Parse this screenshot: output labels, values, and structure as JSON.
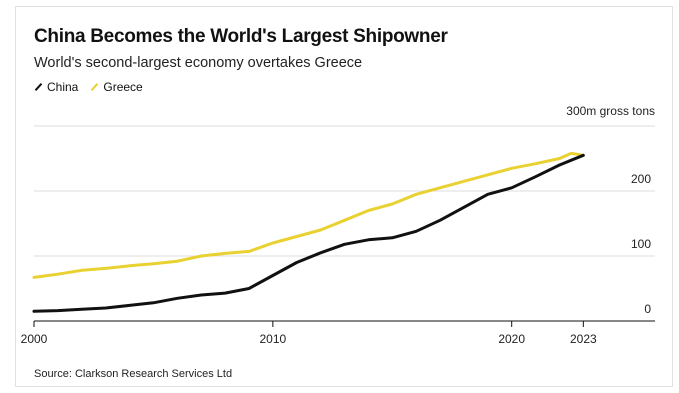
{
  "chart_data": {
    "type": "line",
    "title": "China Becomes the World's Largest Shipowner",
    "subtitle": "World's second-largest economy overtakes Greece",
    "ylabel": "300m gross tons",
    "source": "Source: Clarkson Research Services Ltd",
    "xlim": [
      2000,
      2026
    ],
    "ylim": [
      0,
      300
    ],
    "x_ticks": [
      2000,
      2010,
      2020,
      2023
    ],
    "y_ticks": [
      0,
      100,
      200,
      300
    ],
    "y_tick_labels": [
      "0",
      "100",
      "200",
      ""
    ],
    "grid": true,
    "legend_position": "top-left",
    "series": [
      {
        "name": "China",
        "color": "#111111",
        "x": [
          2000,
          2001,
          2002,
          2003,
          2004,
          2005,
          2006,
          2007,
          2008,
          2009,
          2010,
          2011,
          2012,
          2013,
          2014,
          2015,
          2016,
          2017,
          2018,
          2019,
          2020,
          2021,
          2022,
          2023
        ],
        "y": [
          15,
          16,
          18,
          20,
          24,
          28,
          35,
          40,
          43,
          50,
          70,
          90,
          105,
          118,
          125,
          128,
          138,
          155,
          175,
          195,
          205,
          222,
          240,
          255
        ]
      },
      {
        "name": "Greece",
        "color": "#e9d132",
        "x": [
          2000,
          2001,
          2002,
          2003,
          2004,
          2005,
          2006,
          2007,
          2008,
          2009,
          2010,
          2011,
          2012,
          2013,
          2014,
          2015,
          2016,
          2017,
          2018,
          2019,
          2020,
          2021,
          2022,
          2022.5,
          2023
        ],
        "y": [
          67,
          72,
          78,
          81,
          85,
          88,
          92,
          100,
          104,
          107,
          120,
          130,
          140,
          155,
          170,
          180,
          195,
          205,
          215,
          225,
          235,
          242,
          250,
          258,
          255
        ]
      }
    ]
  }
}
